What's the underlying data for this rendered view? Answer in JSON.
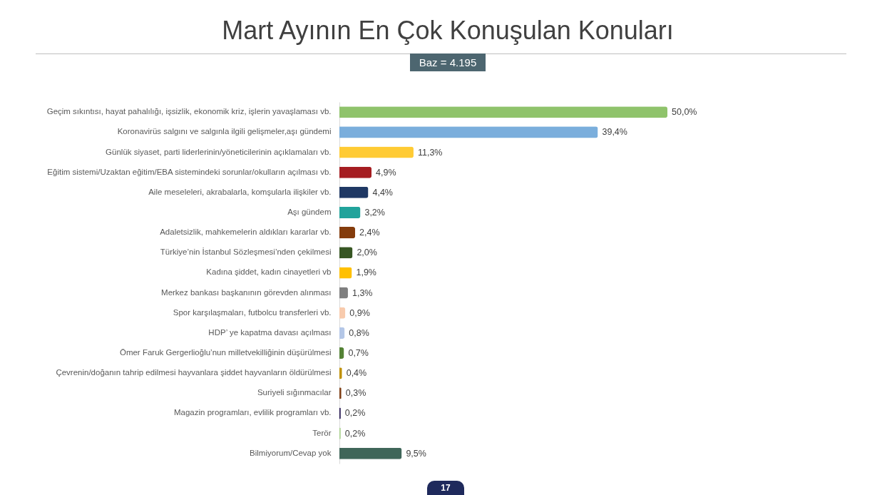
{
  "chart_data": {
    "type": "bar",
    "orientation": "horizontal",
    "title": "Mart Ayının En Çok Konuşulan Konuları",
    "subtitle": "Baz = 4.195",
    "categories": [
      "Geçim sıkıntısı, hayat pahalılığı, işsizlik, ekonomik kriz, işlerin yavaşlaması vb.",
      "Koronavirüs salgını ve salgınla ilgili gelişmeler,aşı gündemi",
      "Günlük siyaset, parti liderlerinin/yöneticilerinin açıklamaları vb.",
      "Eğitim sistemi/Uzaktan eğitim/EBA sistemindeki sorunlar/okulların açılması vb.",
      "Aile meseleleri, akrabalarla, komşularla ilişkiler vb.",
      "Aşı gündem",
      "Adaletsizlik, mahkemelerin aldıkları kararlar vb.",
      "Türkiye’nin İstanbul Sözleşmesi’nden çekilmesi",
      "Kadına şiddet, kadın cinayetleri vb",
      "Merkez bankası başkanının görevden alınması",
      "Spor karşılaşmaları, futbolcu transferleri vb.",
      "HDP’ ye kapatma davası açılması",
      "Ömer Faruk Gergerlioğlu’nun milletvekilliğinin düşürülmesi",
      "Çevrenin/doğanın tahrip edilmesi hayvanlara şiddet hayvanların öldürülmesi",
      "Suriyeli sığınmacılar",
      "Magazin programları, evlilik programları vb.",
      "Terör",
      "Bilmiyorum/Cevap yok"
    ],
    "values": [
      50.0,
      39.4,
      11.3,
      4.9,
      4.4,
      3.2,
      2.4,
      2.0,
      1.9,
      1.3,
      0.9,
      0.8,
      0.7,
      0.4,
      0.3,
      0.2,
      0.2,
      9.5
    ],
    "colors": [
      "#8fc36b",
      "#7aaedc",
      "#ffcb34",
      "#a51d21",
      "#1f3864",
      "#21a39b",
      "#843c0c",
      "#375623",
      "#ffc000",
      "#7f7f7f",
      "#f8cbad",
      "#b4c7e7",
      "#548235",
      "#bf9000",
      "#7f3f16",
      "#20124d",
      "#a9d18e",
      "#3f6659"
    ],
    "value_labels": [
      "50,0%",
      "39,4%",
      "11,3%",
      "4,9%",
      "4,4%",
      "3,2%",
      "2,4%",
      "2,0%",
      "1,9%",
      "1,3%",
      "0,9%",
      "0,8%",
      "0,7%",
      "0,4%",
      "0,3%",
      "0,2%",
      "0,2%",
      "9,5%"
    ],
    "annotations": [
      "17"
    ]
  }
}
